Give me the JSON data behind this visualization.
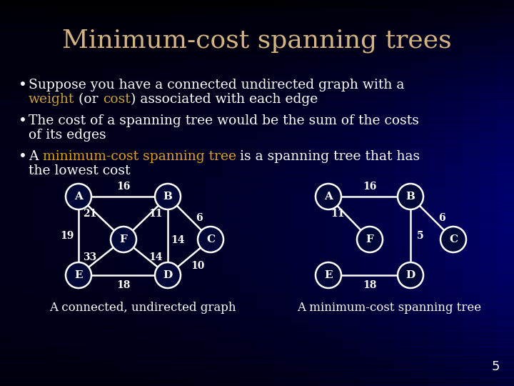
{
  "title": "Minimum-cost spanning trees",
  "title_color": "#d4b483",
  "bg_top": "#000010",
  "bg_bottom": "#000080",
  "background_color": "#000050",
  "text_color": "#ffffff",
  "highlight_color": "#c8a040",
  "mst_color": "#c8a040",
  "label1": "A connected, undirected graph",
  "label2": "A minimum-cost spanning tree",
  "page_num": "5",
  "font_size_title": 26,
  "font_size_bullet": 13.5,
  "font_size_node": 11,
  "font_size_edge": 10,
  "font_size_label": 12
}
